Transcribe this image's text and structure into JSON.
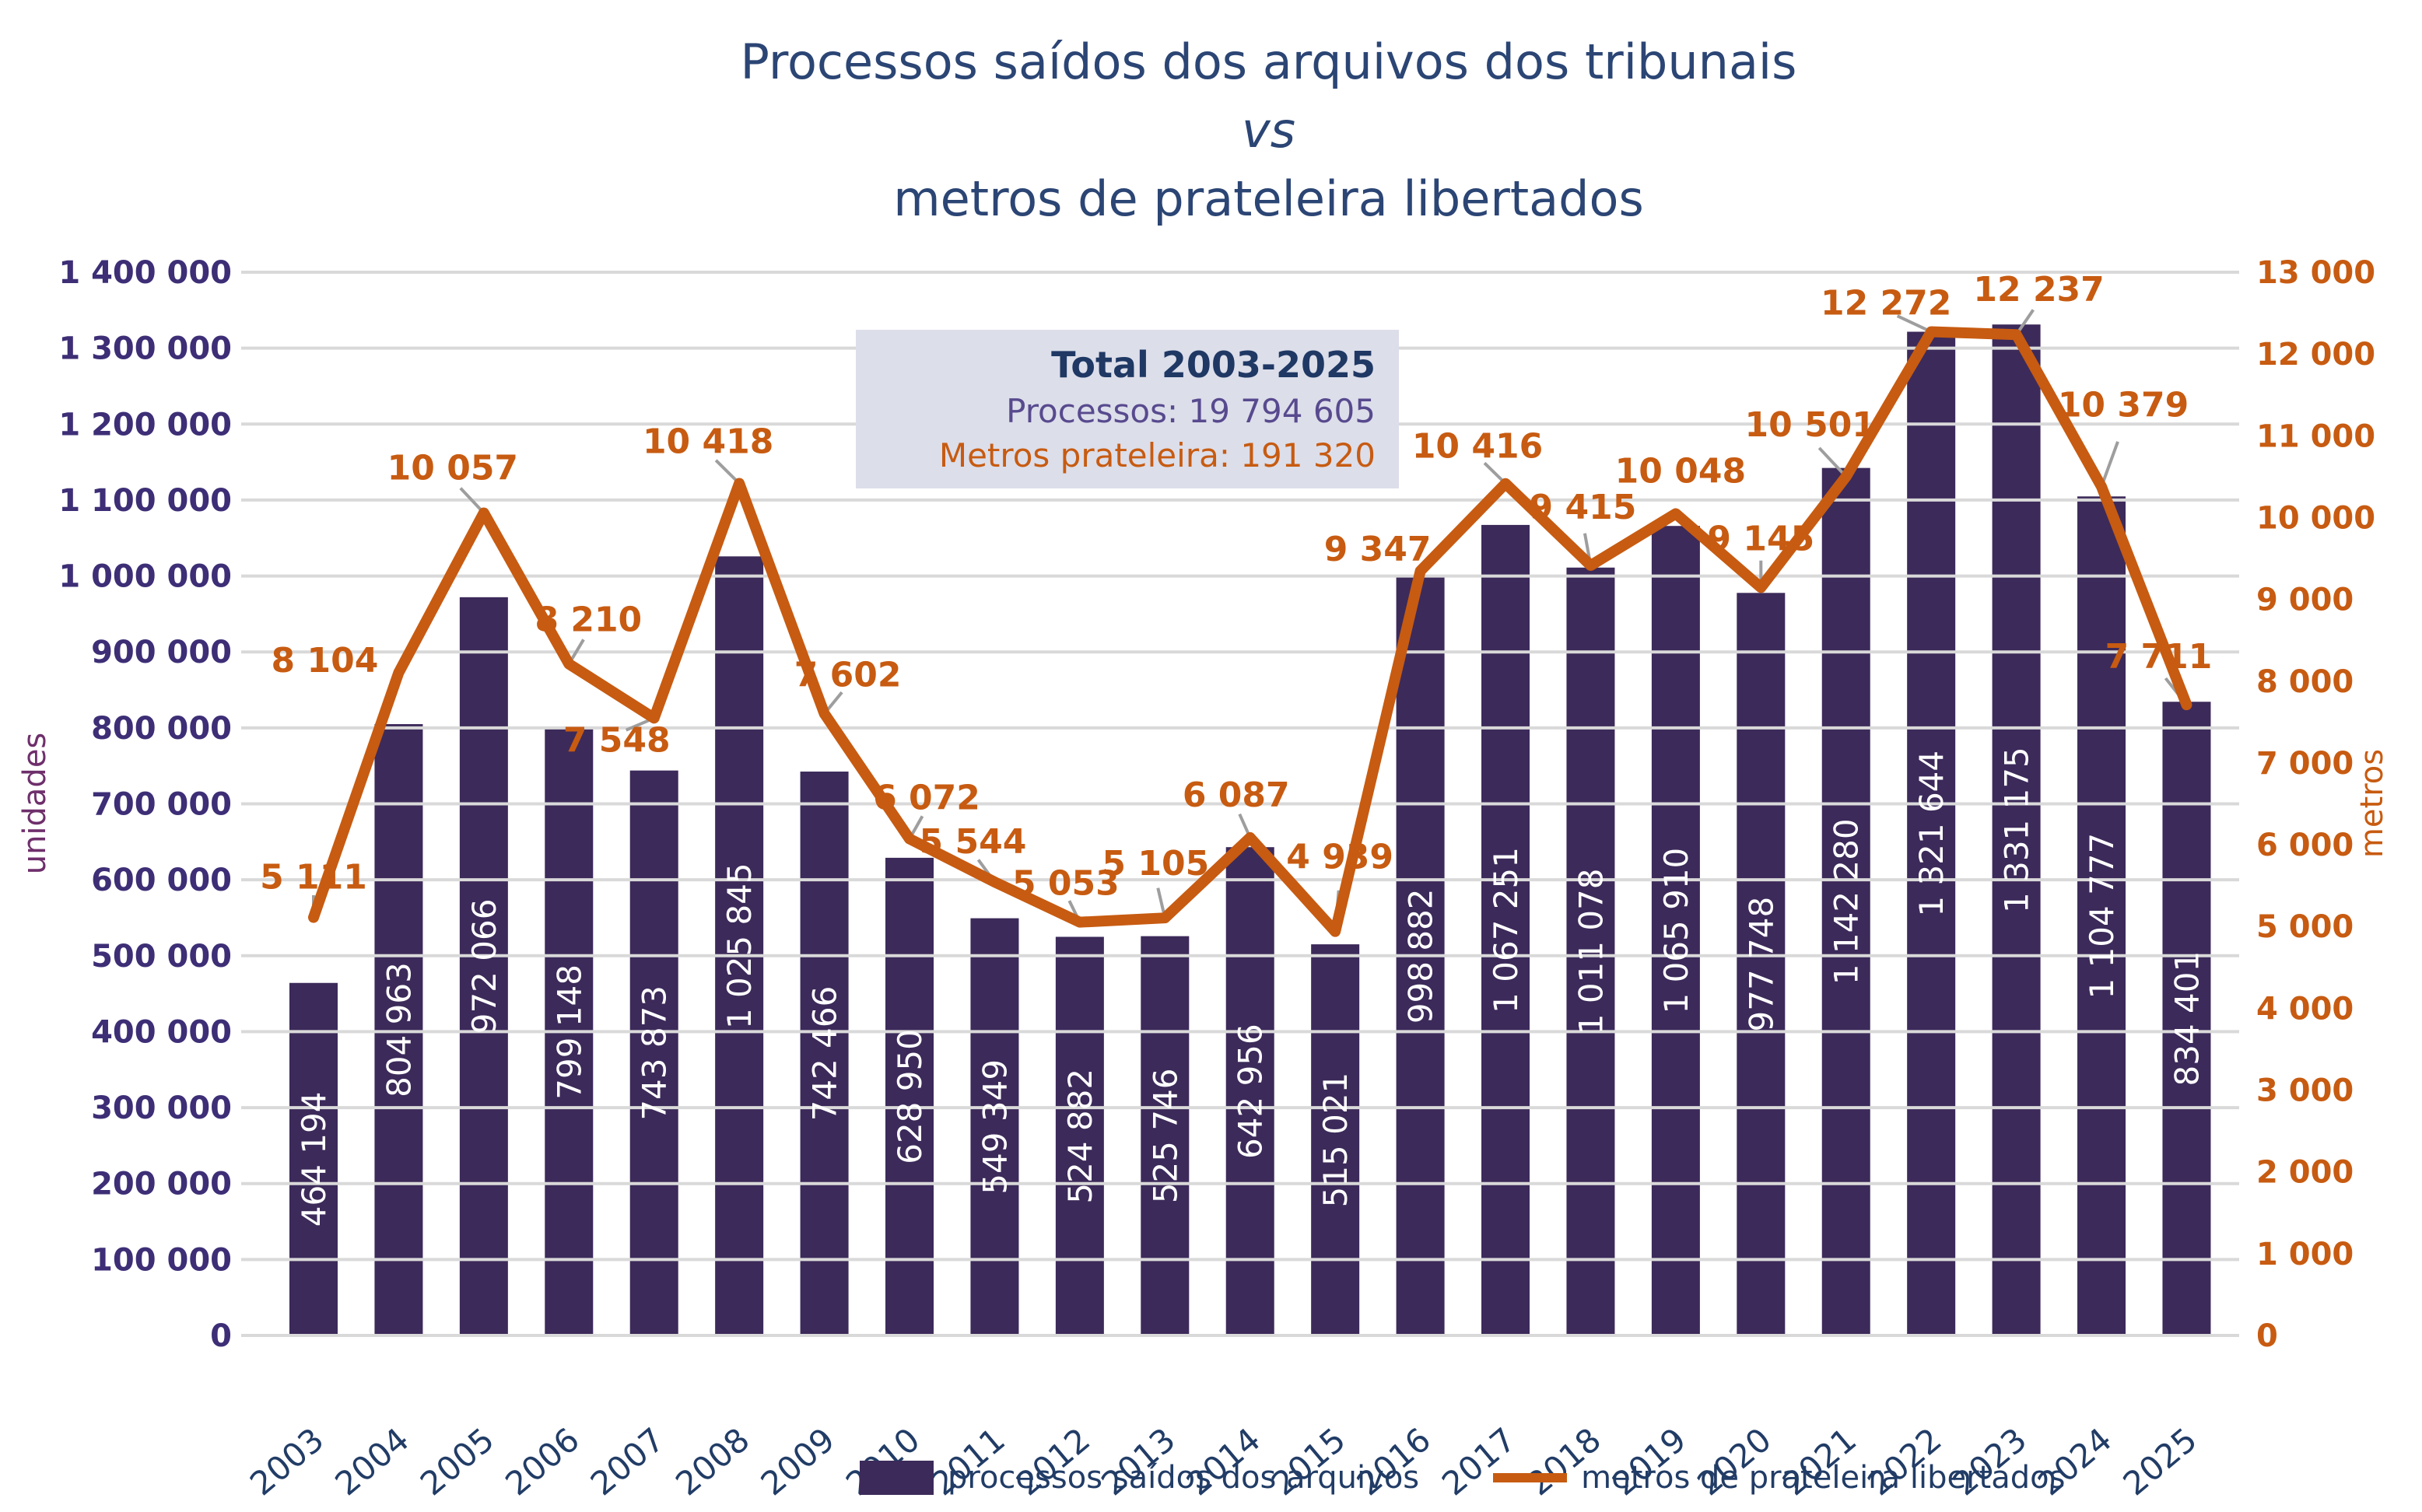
{
  "title": {
    "line1": "Processos saídos dos arquivos dos tribunais",
    "line2": "vs",
    "line3": "metros de prateleira libertados"
  },
  "summary_box": {
    "heading": "Total 2003-2025",
    "processos": "Processos: 19 794 605",
    "metros": "Metros prateleira: 191 320"
  },
  "legend": {
    "bar_label": "processos saídos dos arquivos",
    "line_label": "metros de prateleira libertados"
  },
  "colors": {
    "bar": "#3C2A5A",
    "line": "#C75B11",
    "title": "#2B4574",
    "x_labels": "#213C66",
    "left_ticks": "#3D2E76",
    "left_axis_title": "#6E2F6B",
    "right_ticks": "#C75B11",
    "gridline": "#D9D9D9",
    "bar_value_text": "#FFFFFF",
    "line_value_text": "#C75B11",
    "leader": "#9E9E9E",
    "summary_bg": "#DCDEEA",
    "summary_title": "#1F3864",
    "summary_processos": "#584A8E",
    "summary_metros": "#C75B11",
    "legend_text": "#213C66"
  },
  "chart_data": {
    "type": "combo",
    "categories": [
      "2003",
      "2004",
      "2005",
      "2006",
      "2007",
      "2008",
      "2009",
      "2010",
      "2011",
      "2012",
      "2013",
      "2014",
      "2015",
      "2016",
      "2017",
      "2018",
      "2019",
      "2020",
      "2021",
      "2022",
      "2023",
      "2024",
      "2025"
    ],
    "series": [
      {
        "name": "processos saídos dos arquivos",
        "type": "bar",
        "axis": "left",
        "values": [
          464194,
          804963,
          972066,
          799148,
          743873,
          1025845,
          742466,
          628950,
          549349,
          524882,
          525746,
          642956,
          515021,
          998882,
          1067251,
          1011078,
          1065910,
          977748,
          1142280,
          1321644,
          1331175,
          1104777,
          834401
        ]
      },
      {
        "name": "metros de prateleira libertados",
        "type": "line",
        "axis": "right",
        "values": [
          5111,
          8104,
          10057,
          8210,
          7548,
          10418,
          7602,
          6072,
          5544,
          5053,
          5105,
          6087,
          4939,
          9347,
          10416,
          9415,
          10048,
          9145,
          10501,
          12272,
          12237,
          10379,
          7711
        ]
      }
    ],
    "left_axis": {
      "label": "unidades",
      "min": 0,
      "max": 1400000,
      "step": 100000
    },
    "right_axis": {
      "label": "metros",
      "min": 0,
      "max": 13000,
      "step": 1000
    },
    "grid": true,
    "legend_position": "bottom",
    "data_labels": true
  }
}
